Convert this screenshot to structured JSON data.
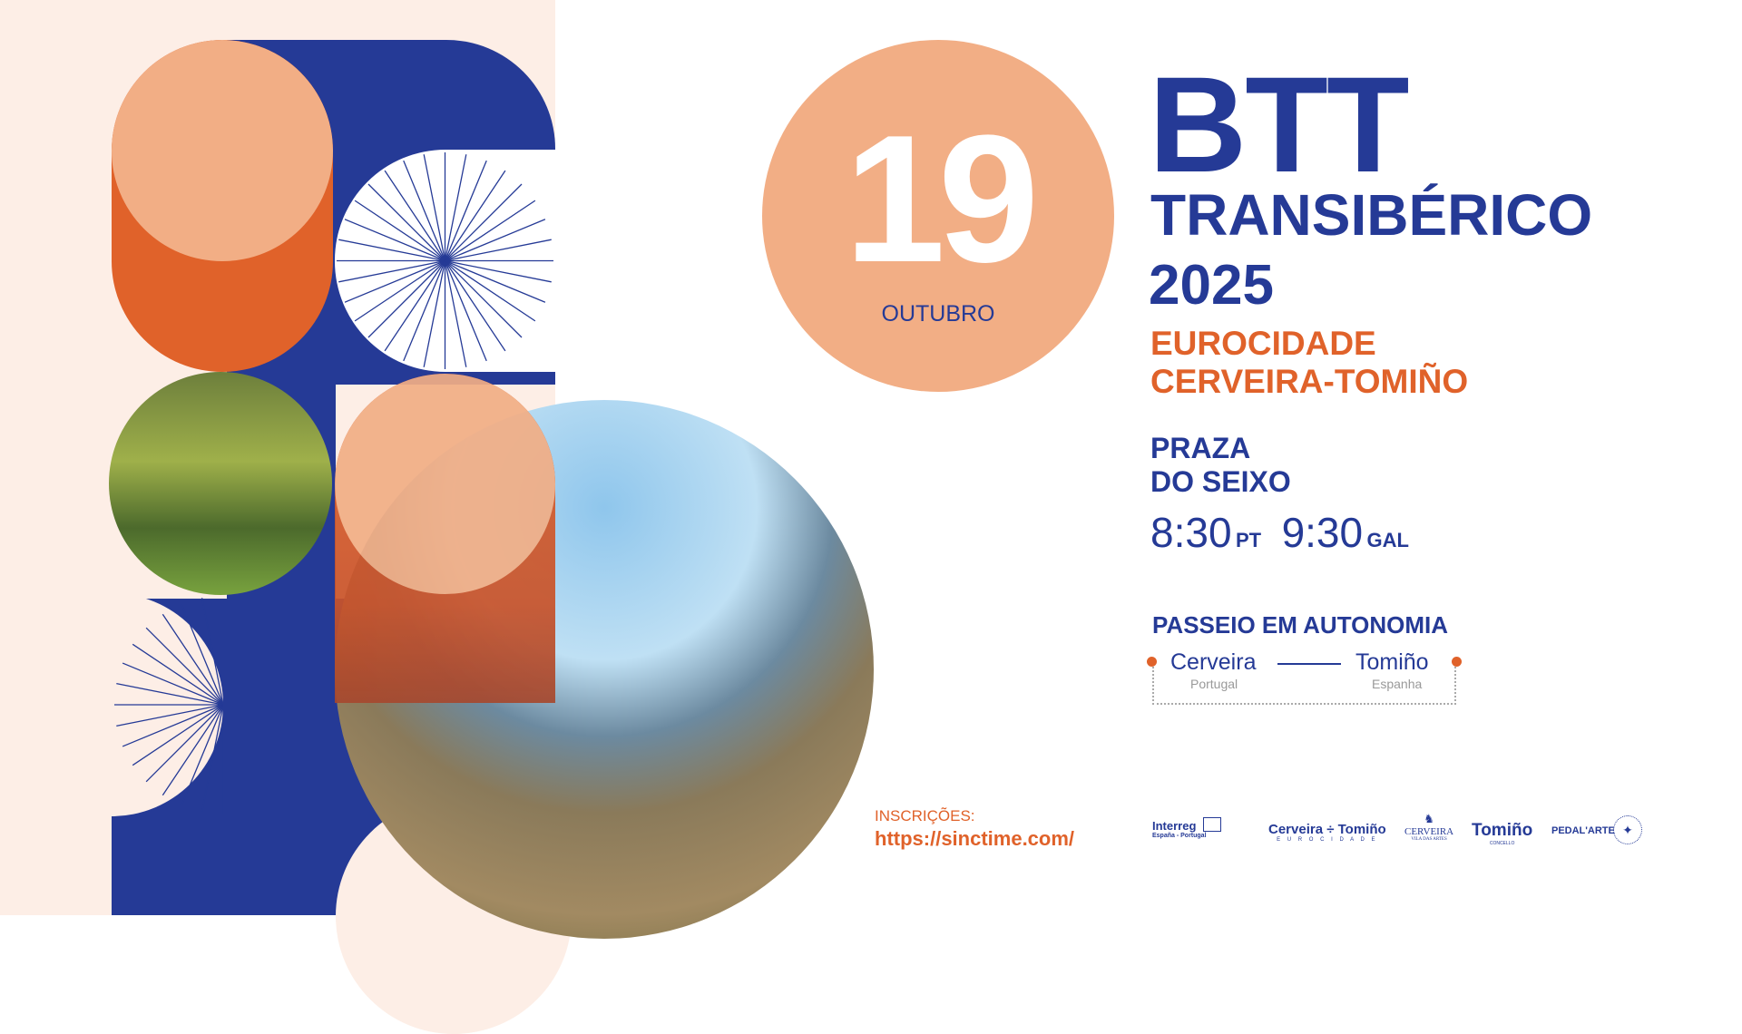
{
  "date": {
    "day": "19",
    "month": "OUTUBRO"
  },
  "title": {
    "line1": "BTT",
    "line2": "TRANSIBÉRICO",
    "line3": "2025"
  },
  "subtitle": {
    "line1": "EUROCIDADE",
    "line2": "CERVEIRA-TOMIÑO"
  },
  "venue": {
    "line1": "PRAZA",
    "line2": "DO SEIXO"
  },
  "times": [
    {
      "time": "8:30",
      "zone": "PT"
    },
    {
      "time": "9:30",
      "zone": "GAL"
    }
  ],
  "route": {
    "title": "PASSEIO EM AUTONOMIA",
    "from": "Cerveira",
    "from_country": "Portugal",
    "to": "Tomiño",
    "to_country": "Espanha"
  },
  "registration": {
    "label": "INSCRIÇÕES:",
    "url": "https://sinctime.com/"
  },
  "logos": [
    {
      "name": "Interreg",
      "sub": "España - Portugal"
    },
    {
      "name": "Cerveira ÷ Tomiño",
      "sub": "E U R O C I D A D E"
    },
    {
      "name": "CERVEIRA",
      "sub": "VILA DAS ARTES"
    },
    {
      "name": "Tomiño",
      "sub": "CONCELLO"
    },
    {
      "name": "PEDAL'ARTE"
    }
  ],
  "colors": {
    "blue": "#253a96",
    "orange": "#e0622a",
    "peach": "#f2ae85",
    "cream": "#fdeee6"
  }
}
